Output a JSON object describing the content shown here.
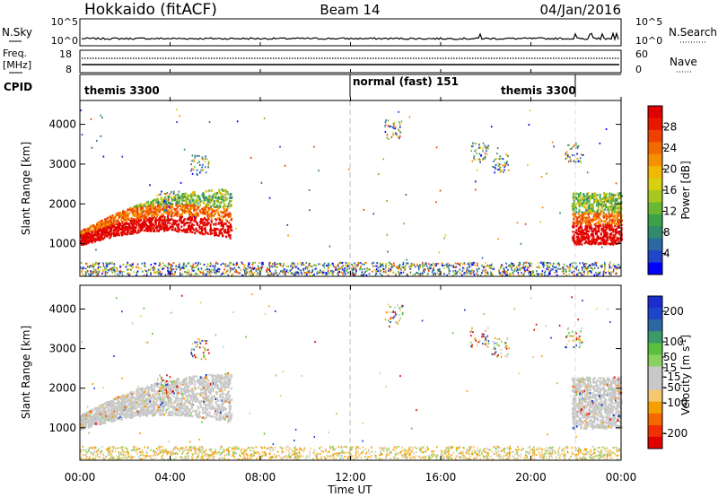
{
  "header": {
    "station": "Hokkaido (fitACF)",
    "beam": "Beam 14",
    "date": "04/Jan/2016"
  },
  "top_panels": {
    "nsky": {
      "label": "N.Sky",
      "tick_top": "10^5",
      "tick_bottom": "10^0"
    },
    "nsearch": {
      "label": "N.Search",
      "tick_top": "10^5",
      "tick_bottom": "10^0"
    },
    "freq": {
      "label": "Freq.",
      "unit": "[MHz]",
      "ticks": [
        "18",
        "8"
      ]
    },
    "nave": {
      "label": "Nave",
      "ticks": [
        "60",
        "0"
      ]
    },
    "cpid": {
      "label": "CPID",
      "modes": [
        {
          "name": "themis 3300",
          "start_hour": 0,
          "end_hour": 12
        },
        {
          "name": "normal (fast) 151",
          "start_hour": 12,
          "end_hour": 21.9
        },
        {
          "name": "themis 3300",
          "start_hour": 21.9,
          "end_hour": 24
        }
      ]
    }
  },
  "chart_data": [
    {
      "type": "heatmap",
      "name": "power",
      "ylabel": "Slant Range [km]",
      "xlabel": "",
      "ylim": [
        180,
        4600
      ],
      "yticks": [
        1000,
        2000,
        3000,
        4000
      ],
      "colorbar": {
        "label": "Power [dB]",
        "range": [
          0,
          32
        ],
        "ticks": [
          4,
          8,
          12,
          16,
          20,
          24,
          28
        ],
        "colors": [
          "#0000ff",
          "#1f45c8",
          "#2a6aa0",
          "#2f8a6e",
          "#3aa34a",
          "#6ab832",
          "#a8c820",
          "#d8d010",
          "#f0b800",
          "#f59000",
          "#f26a00",
          "#ee4000",
          "#e81800",
          "#e00000"
        ]
      },
      "regions": [
        {
          "x": [
            0,
            6.7
          ],
          "range": [
            900,
            2000
          ],
          "level": "high"
        },
        {
          "x": [
            21.8,
            24
          ],
          "range": [
            1000,
            2300
          ],
          "level": "high"
        },
        {
          "x": [
            0,
            24
          ],
          "range": [
            200,
            550
          ],
          "level": "mixed"
        }
      ]
    },
    {
      "type": "heatmap",
      "name": "velocity",
      "ylabel": "Slant Range [km]",
      "xlabel": "Time UT",
      "ylim": [
        180,
        4600
      ],
      "yticks": [
        1000,
        2000,
        3000,
        4000
      ],
      "colorbar": {
        "label": "Velocity [m s^-1]",
        "range": [
          -250,
          250
        ],
        "ticks": [
          200,
          100,
          50,
          15,
          -15,
          -50,
          -100,
          -200
        ],
        "colors": [
          "#e00000",
          "#f03000",
          "#f46a00",
          "#f6a000",
          "#f4c870",
          "#c8c8c8",
          "#c8c8c8",
          "#8cd060",
          "#5ac040",
          "#3a9a6a",
          "#2a6aa0",
          "#1f45c8",
          "#1a2ed0"
        ]
      },
      "regions": [
        {
          "x": [
            0,
            6.7
          ],
          "range": [
            900,
            2000
          ],
          "level": "low_velocity"
        },
        {
          "x": [
            21.8,
            24
          ],
          "range": [
            1000,
            2300
          ],
          "level": "low_velocity"
        }
      ]
    }
  ],
  "x_axis": {
    "range": [
      0,
      24
    ],
    "ticks": [
      {
        "hour": 0,
        "label": "00:00"
      },
      {
        "hour": 4,
        "label": "04:00"
      },
      {
        "hour": 8,
        "label": "08:00"
      },
      {
        "hour": 12,
        "label": "12:00"
      },
      {
        "hour": 16,
        "label": "16:00"
      },
      {
        "hour": 20,
        "label": "20:00"
      },
      {
        "hour": 24,
        "label": "00:00"
      }
    ]
  }
}
